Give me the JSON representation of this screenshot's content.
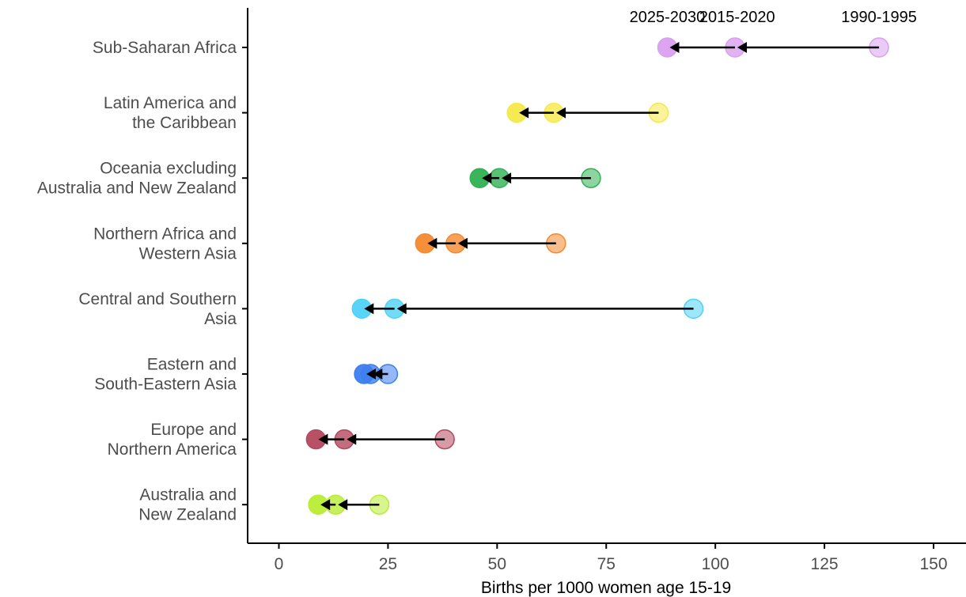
{
  "chart_data": {
    "type": "scatter",
    "title": "",
    "xlabel": "Births per 1000 women age 15-19",
    "ylabel": "",
    "xlim": [
      -7,
      157
    ],
    "xticks": [
      0,
      25,
      50,
      75,
      100,
      125,
      150
    ],
    "grid": false,
    "legend": "none",
    "period_labels": [
      "2025-2030",
      "2015-2020",
      "1990-1995"
    ],
    "annotation_values": [
      89,
      105,
      137.5
    ],
    "categories": [
      {
        "label": [
          "Sub-Saharan Africa"
        ],
        "color": "#d9a0f0",
        "values": {
          "1990-1995": 137.5,
          "2015-2020": 104.5,
          "2025-2030": 89
        }
      },
      {
        "label": [
          "Latin America and",
          "the Caribbean"
        ],
        "color": "#f5e94a",
        "values": {
          "1990-1995": 87,
          "2015-2020": 63,
          "2025-2030": 54.5
        }
      },
      {
        "label": [
          "Oceania excluding",
          "Australia and New Zealand"
        ],
        "color": "#2fb152",
        "values": {
          "1990-1995": 71.5,
          "2015-2020": 50.5,
          "2025-2030": 46
        }
      },
      {
        "label": [
          "Northern Africa and",
          "Western Asia"
        ],
        "color": "#f5892e",
        "values": {
          "1990-1995": 63.5,
          "2015-2020": 40.5,
          "2025-2030": 33.5
        }
      },
      {
        "label": [
          "Central and Southern",
          "Asia"
        ],
        "color": "#4fd3f6",
        "values": {
          "1990-1995": 95,
          "2015-2020": 26.5,
          "2025-2030": 19
        }
      },
      {
        "label": [
          "Eastern and",
          "South-Eastern Asia"
        ],
        "color": "#3d7ef0",
        "values": {
          "1990-1995": 25,
          "2015-2020": 21,
          "2025-2030": 19.5
        }
      },
      {
        "label": [
          "Europe and",
          "Northern America"
        ],
        "color": "#b5485e",
        "values": {
          "1990-1995": 38,
          "2015-2020": 15,
          "2025-2030": 8.5
        }
      },
      {
        "label": [
          "Australia and",
          "New Zealand"
        ],
        "color": "#b9ec35",
        "values": {
          "1990-1995": 23,
          "2015-2020": 13,
          "2025-2030": 9
        }
      }
    ]
  }
}
